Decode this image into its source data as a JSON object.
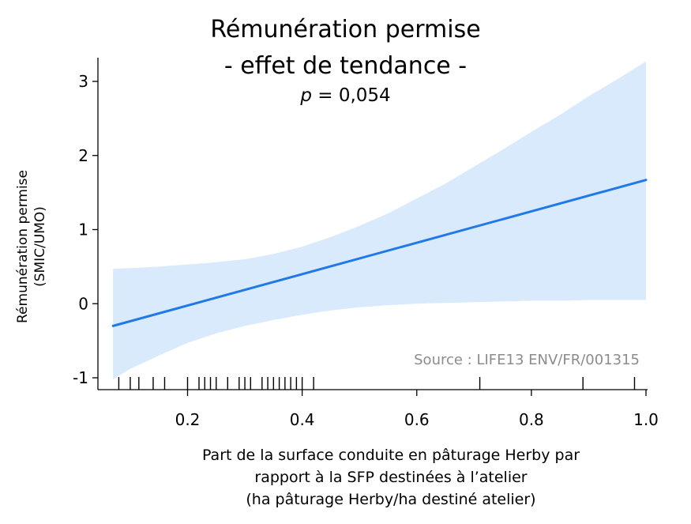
{
  "chart_data": {
    "type": "line",
    "title": "Rémunération permise",
    "subtitle": "- effet de tendance -",
    "stat_prefix": "p",
    "stat_value": " = 0,054",
    "ylabel_line1": "Rémunération permise",
    "ylabel_line2": "(SMIC/UMO)",
    "xlabel_line1": "Part de la surface conduite en pâturage Herby par",
    "xlabel_line2": "rapport à la SFP destinées à l’atelier",
    "xlabel_line3": "(ha pâturage Herby/ha destiné atelier)",
    "source": "Source : LIFE13 ENV/FR/001315",
    "xlim": [
      0.07,
      1.0
    ],
    "ylim": [
      -1.1,
      3.3
    ],
    "xticks": [
      0.2,
      0.4,
      0.6,
      0.8,
      1.0
    ],
    "xtick_labels": [
      "0.2",
      "0.4",
      "0.6",
      "0.8",
      "1.0"
    ],
    "yticks": [
      -1,
      0,
      1,
      2,
      3
    ],
    "ytick_labels": [
      "-1",
      "0",
      "1",
      "2",
      "3"
    ],
    "line_x": [
      0.07,
      1.0
    ],
    "line_y": [
      -0.3,
      1.67
    ],
    "band_x": [
      0.07,
      0.1,
      0.15,
      0.2,
      0.25,
      0.3,
      0.35,
      0.4,
      0.45,
      0.5,
      0.55,
      0.6,
      0.65,
      0.7,
      0.75,
      0.8,
      0.85,
      0.9,
      0.95,
      1.0
    ],
    "band_lower": [
      -1.02,
      -0.88,
      -0.7,
      -0.53,
      -0.4,
      -0.3,
      -0.22,
      -0.15,
      -0.09,
      -0.05,
      -0.02,
      0.0,
      0.01,
      0.02,
      0.03,
      0.04,
      0.04,
      0.05,
      0.05,
      0.05
    ],
    "band_upper": [
      0.47,
      0.48,
      0.5,
      0.53,
      0.56,
      0.6,
      0.67,
      0.77,
      0.9,
      1.05,
      1.22,
      1.42,
      1.62,
      1.85,
      2.08,
      2.32,
      2.55,
      2.8,
      3.03,
      3.27
    ],
    "rug_x": [
      0.08,
      0.1,
      0.115,
      0.14,
      0.16,
      0.2,
      0.22,
      0.23,
      0.24,
      0.25,
      0.27,
      0.29,
      0.3,
      0.31,
      0.33,
      0.34,
      0.35,
      0.36,
      0.37,
      0.38,
      0.39,
      0.4,
      0.42,
      0.71,
      0.89,
      0.98
    ],
    "colors": {
      "line": "#1f7ae8",
      "band": "#d9eafc",
      "source": "#8c8c8c"
    },
    "grid": false,
    "legend": "none"
  }
}
